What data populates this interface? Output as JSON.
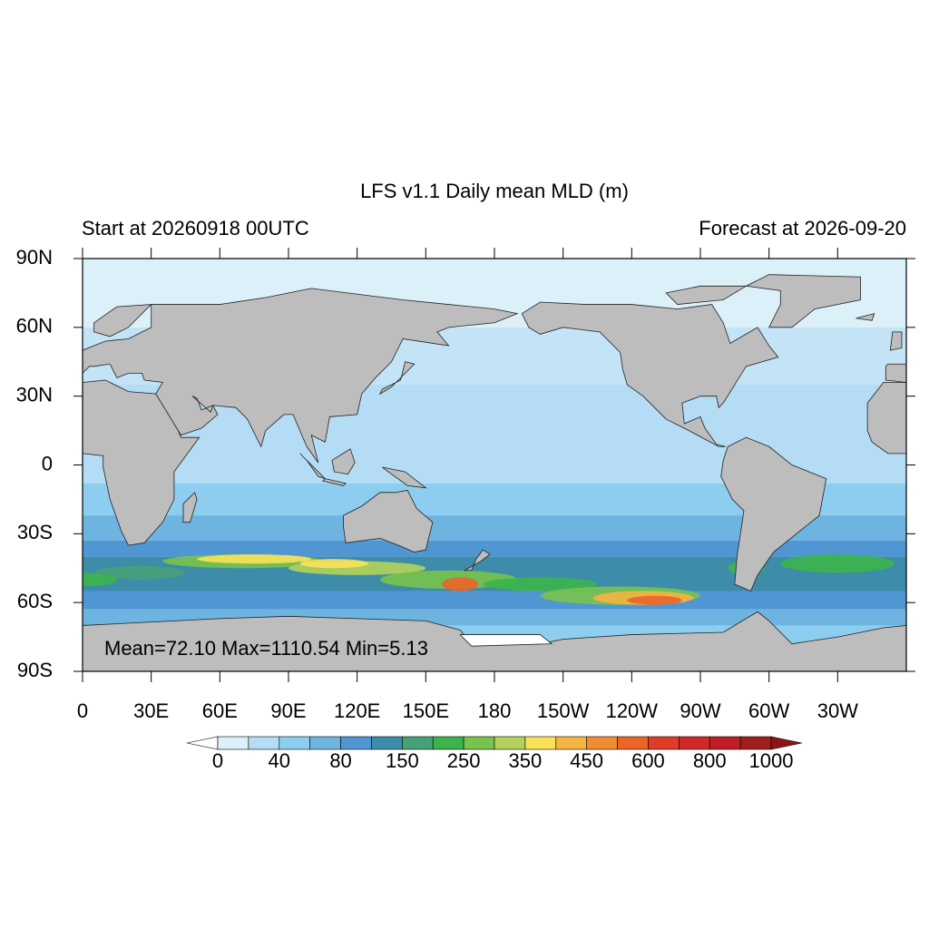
{
  "map": {
    "title": "LFS v1.1 Daily mean MLD (m)",
    "left_subtitle": "Start at 20260918 00UTC",
    "right_subtitle": "Forecast at 2026-09-20",
    "stats": "Mean=72.10  Max=1110.54  Min=5.13",
    "lat_labels": [
      "90N",
      "60N",
      "30N",
      "0",
      "30S",
      "60S",
      "90S"
    ],
    "lon_labels": [
      "0",
      "30E",
      "60E",
      "90E",
      "120E",
      "150E",
      "180",
      "150W",
      "120W",
      "90W",
      "60W",
      "30W"
    ],
    "land_color": "#bdbdbd",
    "colorbar": {
      "labels": [
        0,
        40,
        80,
        150,
        250,
        350,
        450,
        600,
        800,
        1000
      ],
      "below_color": "#ffffff",
      "above_color": "#8c1414",
      "colors": [
        "#dcf0fa",
        "#b4dcf5",
        "#8ccdf0",
        "#6eb4e1",
        "#5096d2",
        "#3c8caa",
        "#46a078",
        "#3cb44b",
        "#78c34b",
        "#b4d25a",
        "#fae15a",
        "#f5b441",
        "#f08c32",
        "#eb6428",
        "#e13c28",
        "#d22828",
        "#be1e24",
        "#a01e1e"
      ]
    }
  }
}
